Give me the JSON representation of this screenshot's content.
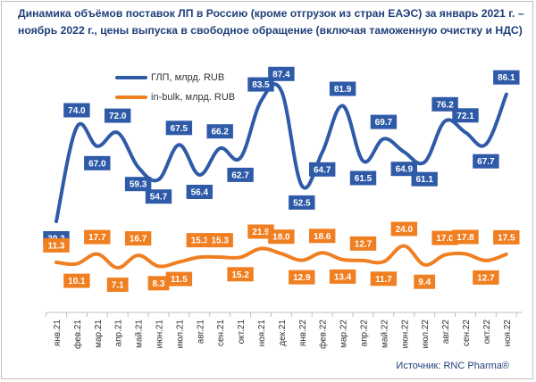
{
  "title": "Динамика объёмов поставок ЛП в Россию (кроме отгрузок из стран ЕАЭС) за январь 2021 г. – ноябрь 2022 г., цены выпуска в свободное обращение (включая таможенную очистку и НДС)",
  "source": "Источник: RNC Pharma®",
  "colors": {
    "gmp": "#2e5aa7",
    "bulk": "#f07f22",
    "label_text": "#ffffff"
  },
  "chart_data": {
    "type": "line",
    "title": "Динамика объёмов поставок ЛП в Россию (кроме отгрузок из стран ЕАЭС) за январь 2021 г. – ноябрь 2022 г., цены выпуска в свободное обращение (включая таможенную очистку и НДС)",
    "categories": [
      "янв.21",
      "фев.21",
      "мар.21",
      "апр.21",
      "май.21",
      "июн.21",
      "июл.21",
      "авг.21",
      "сен.21",
      "окт.21",
      "ноя.21",
      "дек.21",
      "янв.22",
      "фев.22",
      "мар.22",
      "апр.22",
      "май.22",
      "июн.22",
      "июл.22",
      "авг.22",
      "сен.22",
      "окт.22",
      "ноя.22"
    ],
    "series": [
      {
        "name": "ГЛП, млрд. RUB",
        "values": [
          39.3,
          74.0,
          67.0,
          72.0,
          59.3,
          54.7,
          67.5,
          56.4,
          66.2,
          62.7,
          83.5,
          87.4,
          52.5,
          64.7,
          81.9,
          61.5,
          69.7,
          64.9,
          61.1,
          76.2,
          72.1,
          67.7,
          86.1
        ]
      },
      {
        "name": "in-bulk, млрд. RUB",
        "values": [
          11.3,
          10.1,
          17.7,
          7.1,
          16.7,
          8.3,
          11.5,
          15.3,
          15.3,
          15.2,
          21.9,
          18.0,
          12.9,
          18.6,
          13.4,
          12.7,
          11.7,
          24.0,
          9.4,
          17.0,
          17.8,
          12.7,
          17.5
        ]
      }
    ],
    "label_format": "0.0",
    "grid": false,
    "legend": "top-left"
  }
}
